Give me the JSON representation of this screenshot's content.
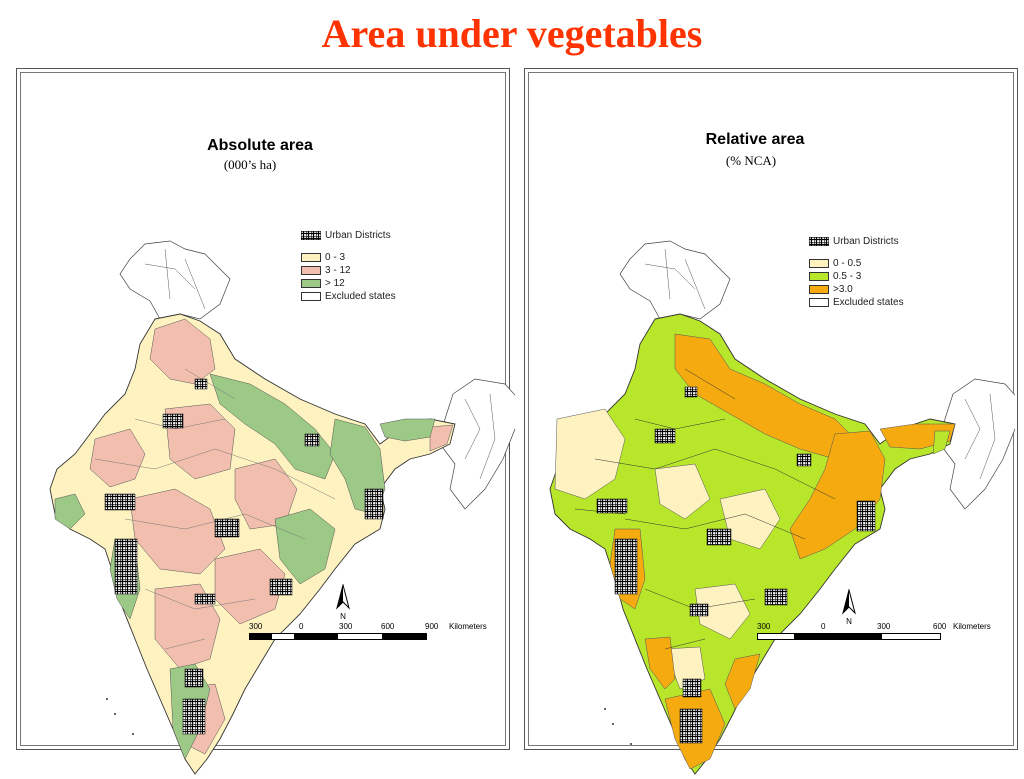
{
  "slide": {
    "title": "Area under vegetables"
  },
  "maps": [
    {
      "title": "Absolute area",
      "subtitle": "(000’s ha)",
      "legend": {
        "urban": {
          "label": "Urban Districts"
        },
        "classes": [
          {
            "label": "0 - 3",
            "color": "#fdf2c0"
          },
          {
            "label": "3 - 12",
            "color": "#f2bfae"
          },
          {
            "label": "> 12",
            "color": "#9cc985"
          },
          {
            "label": "Excluded states",
            "color": "#ffffff"
          }
        ]
      },
      "scale": {
        "labels": [
          "300",
          "0",
          "300",
          "600",
          "900"
        ],
        "unit": "Kilometers"
      },
      "north_label": "N"
    },
    {
      "title": "Relative area",
      "subtitle": "(% NCA)",
      "legend": {
        "urban": {
          "label": "Urban Districts"
        },
        "classes": [
          {
            "label": "0 - 0.5",
            "color": "#fdf2c0"
          },
          {
            "label": "0.5 - 3",
            "color": "#b8e62a"
          },
          {
            "label": ">3.0",
            "color": "#f5ab10"
          },
          {
            "label": "Excluded states",
            "color": "#ffffff"
          }
        ]
      },
      "scale": {
        "labels": [
          "300",
          "0",
          "300",
          "600"
        ],
        "unit": "Kilometers"
      },
      "north_label": "N"
    }
  ]
}
